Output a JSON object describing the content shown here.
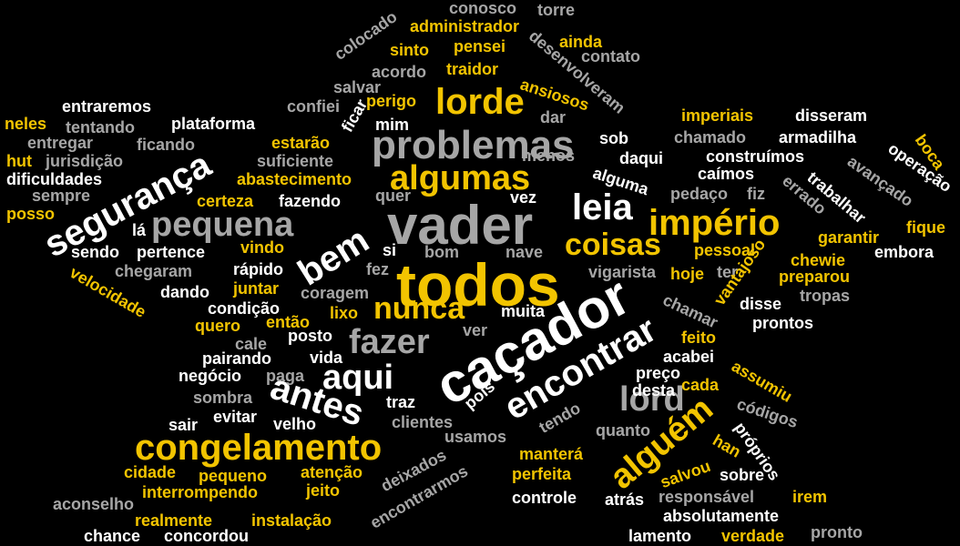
{
  "palette": {
    "background": "#000000",
    "white": "#ffffff",
    "yellow": "#f2c400",
    "grey": "#a6a6a6"
  },
  "words": [
    {
      "key": "todos",
      "text": "todos",
      "color": "yellow"
    },
    {
      "key": "vader",
      "text": "vader",
      "color": "grey"
    },
    {
      "key": "cacador",
      "text": "caçador",
      "color": "white"
    },
    {
      "key": "problemas",
      "text": "problemas",
      "color": "grey"
    },
    {
      "key": "lorde",
      "text": "lorde",
      "color": "yellow"
    },
    {
      "key": "pequena",
      "text": "pequena",
      "color": "grey"
    },
    {
      "key": "seguranca",
      "text": "segurança",
      "color": "white"
    },
    {
      "key": "algumas",
      "text": "algumas",
      "color": "yellow"
    },
    {
      "key": "imperio",
      "text": "império",
      "color": "yellow"
    },
    {
      "key": "leia",
      "text": "leia",
      "color": "white"
    },
    {
      "key": "coisas",
      "text": "coisas",
      "color": "yellow"
    },
    {
      "key": "bem",
      "text": "bem",
      "color": "white"
    },
    {
      "key": "encontrar",
      "text": "encontrar",
      "color": "white"
    },
    {
      "key": "nunca",
      "text": "nunca",
      "color": "yellow"
    },
    {
      "key": "fazer",
      "text": "fazer",
      "color": "grey"
    },
    {
      "key": "aqui",
      "text": "aqui",
      "color": "white"
    },
    {
      "key": "antes",
      "text": "antes",
      "color": "white"
    },
    {
      "key": "lord",
      "text": "lord",
      "color": "grey"
    },
    {
      "key": "alguem",
      "text": "alguém",
      "color": "yellow"
    },
    {
      "key": "congelamento",
      "text": "congelamento",
      "color": "yellow"
    },
    {
      "key": "conosco",
      "text": "conosco",
      "color": "grey"
    },
    {
      "key": "torre",
      "text": "torre",
      "color": "grey"
    },
    {
      "key": "administrador",
      "text": "administrador",
      "color": "yellow"
    },
    {
      "key": "colocado",
      "text": "colocado",
      "color": "grey"
    },
    {
      "key": "sinto",
      "text": "sinto",
      "color": "yellow"
    },
    {
      "key": "pensei",
      "text": "pensei",
      "color": "yellow"
    },
    {
      "key": "ainda",
      "text": "ainda",
      "color": "yellow"
    },
    {
      "key": "desenvolveram",
      "text": "desenvolveram",
      "color": "grey"
    },
    {
      "key": "contato",
      "text": "contato",
      "color": "grey"
    },
    {
      "key": "acordo",
      "text": "acordo",
      "color": "grey"
    },
    {
      "key": "traidor",
      "text": "traidor",
      "color": "yellow"
    },
    {
      "key": "ansiosos",
      "text": "ansiosos",
      "color": "yellow"
    },
    {
      "key": "salvar",
      "text": "salvar",
      "color": "grey"
    },
    {
      "key": "confiei",
      "text": "confiei",
      "color": "grey"
    },
    {
      "key": "perigo",
      "text": "perigo",
      "color": "yellow"
    },
    {
      "key": "entraremos",
      "text": "entraremos",
      "color": "white"
    },
    {
      "key": "neles",
      "text": "neles",
      "color": "yellow"
    },
    {
      "key": "tentando",
      "text": "tentando",
      "color": "grey"
    },
    {
      "key": "plataforma",
      "text": "plataforma",
      "color": "white"
    },
    {
      "key": "ficar",
      "text": "ficar",
      "color": "white"
    },
    {
      "key": "mim",
      "text": "mim",
      "color": "white"
    },
    {
      "key": "dar",
      "text": "dar",
      "color": "grey"
    },
    {
      "key": "imperiais",
      "text": "imperiais",
      "color": "yellow"
    },
    {
      "key": "disseram",
      "text": "disseram",
      "color": "white"
    },
    {
      "key": "entregar",
      "text": "entregar",
      "color": "grey"
    },
    {
      "key": "ficando",
      "text": "ficando",
      "color": "grey"
    },
    {
      "key": "estarao",
      "text": "estarão",
      "color": "yellow"
    },
    {
      "key": "sob",
      "text": "sob",
      "color": "white"
    },
    {
      "key": "chamado",
      "text": "chamado",
      "color": "grey"
    },
    {
      "key": "armadilha",
      "text": "armadilha",
      "color": "white"
    },
    {
      "key": "boca",
      "text": "boca",
      "color": "yellow"
    },
    {
      "key": "hut",
      "text": "hut",
      "color": "yellow"
    },
    {
      "key": "jurisdicao",
      "text": "jurisdição",
      "color": "grey"
    },
    {
      "key": "suficiente",
      "text": "suficiente",
      "color": "grey"
    },
    {
      "key": "menos",
      "text": "menos",
      "color": "grey"
    },
    {
      "key": "daqui",
      "text": "daqui",
      "color": "white"
    },
    {
      "key": "construimos",
      "text": "construímos",
      "color": "white"
    },
    {
      "key": "operacao",
      "text": "operação",
      "color": "white"
    },
    {
      "key": "dificuldades",
      "text": "dificuldades",
      "color": "white"
    },
    {
      "key": "abastecimento",
      "text": "abastecimento",
      "color": "yellow"
    },
    {
      "key": "alguma",
      "text": "alguma",
      "color": "white"
    },
    {
      "key": "caimos",
      "text": "caímos",
      "color": "white"
    },
    {
      "key": "avancado",
      "text": "avançado",
      "color": "grey"
    },
    {
      "key": "sempre",
      "text": "sempre",
      "color": "grey"
    },
    {
      "key": "certeza",
      "text": "certeza",
      "color": "yellow"
    },
    {
      "key": "fazendo",
      "text": "fazendo",
      "color": "white"
    },
    {
      "key": "quer",
      "text": "quer",
      "color": "grey"
    },
    {
      "key": "pedaco",
      "text": "pedaço",
      "color": "grey"
    },
    {
      "key": "fiz",
      "text": "fiz",
      "color": "grey"
    },
    {
      "key": "trabalhar",
      "text": "trabalhar",
      "color": "white"
    },
    {
      "key": "errado",
      "text": "errado",
      "color": "grey"
    },
    {
      "key": "posso",
      "text": "posso",
      "color": "yellow"
    },
    {
      "key": "vez",
      "text": "vez",
      "color": "white"
    },
    {
      "key": "fique",
      "text": "fique",
      "color": "yellow"
    },
    {
      "key": "la",
      "text": "lá",
      "color": "white"
    },
    {
      "key": "garantir",
      "text": "garantir",
      "color": "yellow"
    },
    {
      "key": "sendo",
      "text": "sendo",
      "color": "white"
    },
    {
      "key": "pertence",
      "text": "pertence",
      "color": "white"
    },
    {
      "key": "vindo",
      "text": "vindo",
      "color": "yellow"
    },
    {
      "key": "si",
      "text": "si",
      "color": "white"
    },
    {
      "key": "bom",
      "text": "bom",
      "color": "grey"
    },
    {
      "key": "nave",
      "text": "nave",
      "color": "grey"
    },
    {
      "key": "pessoal",
      "text": "pessoal",
      "color": "yellow"
    },
    {
      "key": "embora",
      "text": "embora",
      "color": "white"
    },
    {
      "key": "velocidade",
      "text": "velocidade",
      "color": "yellow"
    },
    {
      "key": "chegaram",
      "text": "chegaram",
      "color": "grey"
    },
    {
      "key": "rapido",
      "text": "rápido",
      "color": "white"
    },
    {
      "key": "fez",
      "text": "fez",
      "color": "grey"
    },
    {
      "key": "vigarista",
      "text": "vigarista",
      "color": "grey"
    },
    {
      "key": "hoje",
      "text": "hoje",
      "color": "yellow"
    },
    {
      "key": "ter",
      "text": "ter",
      "color": "grey"
    },
    {
      "key": "vantajoso",
      "text": "vantajoso",
      "color": "yellow"
    },
    {
      "key": "preparou",
      "text": "preparou",
      "color": "yellow"
    },
    {
      "key": "chewie",
      "text": "chewie",
      "color": "yellow"
    },
    {
      "key": "dando",
      "text": "dando",
      "color": "white"
    },
    {
      "key": "juntar",
      "text": "juntar",
      "color": "yellow"
    },
    {
      "key": "coragem",
      "text": "coragem",
      "color": "grey"
    },
    {
      "key": "tropas",
      "text": "tropas",
      "color": "grey"
    },
    {
      "key": "condicao",
      "text": "condição",
      "color": "white"
    },
    {
      "key": "lixo",
      "text": "lixo",
      "color": "yellow"
    },
    {
      "key": "muita",
      "text": "muita",
      "color": "white"
    },
    {
      "key": "disse",
      "text": "disse",
      "color": "white"
    },
    {
      "key": "quero",
      "text": "quero",
      "color": "yellow"
    },
    {
      "key": "entao",
      "text": "então",
      "color": "yellow"
    },
    {
      "key": "chamar",
      "text": "chamar",
      "color": "grey"
    },
    {
      "key": "prontos",
      "text": "prontos",
      "color": "white"
    },
    {
      "key": "cale",
      "text": "cale",
      "color": "grey"
    },
    {
      "key": "posto",
      "text": "posto",
      "color": "white"
    },
    {
      "key": "ver",
      "text": "ver",
      "color": "grey"
    },
    {
      "key": "feito",
      "text": "feito",
      "color": "yellow"
    },
    {
      "key": "pairando",
      "text": "pairando",
      "color": "white"
    },
    {
      "key": "vida",
      "text": "vida",
      "color": "white"
    },
    {
      "key": "acabei",
      "text": "acabei",
      "color": "white"
    },
    {
      "key": "negocio",
      "text": "negócio",
      "color": "white"
    },
    {
      "key": "paga",
      "text": "paga",
      "color": "grey"
    },
    {
      "key": "preco",
      "text": "preço",
      "color": "white"
    },
    {
      "key": "assumiu",
      "text": "assumiu",
      "color": "yellow"
    },
    {
      "key": "pois",
      "text": "pois",
      "color": "white"
    },
    {
      "key": "desta",
      "text": "desta",
      "color": "white"
    },
    {
      "key": "cada",
      "text": "cada",
      "color": "yellow"
    },
    {
      "key": "sombra",
      "text": "sombra",
      "color": "grey"
    },
    {
      "key": "traz",
      "text": "traz",
      "color": "white"
    },
    {
      "key": "codigos",
      "text": "códigos",
      "color": "grey"
    },
    {
      "key": "sair",
      "text": "sair",
      "color": "white"
    },
    {
      "key": "evitar",
      "text": "evitar",
      "color": "white"
    },
    {
      "key": "velho",
      "text": "velho",
      "color": "white"
    },
    {
      "key": "clientes",
      "text": "clientes",
      "color": "grey"
    },
    {
      "key": "tendo",
      "text": "tendo",
      "color": "grey"
    },
    {
      "key": "quanto",
      "text": "quanto",
      "color": "grey"
    },
    {
      "key": "proprios",
      "text": "próprios",
      "color": "white"
    },
    {
      "key": "usamos",
      "text": "usamos",
      "color": "grey"
    },
    {
      "key": "han",
      "text": "han",
      "color": "yellow"
    },
    {
      "key": "deixados",
      "text": "deixados",
      "color": "grey"
    },
    {
      "key": "mantera",
      "text": "manterá",
      "color": "yellow"
    },
    {
      "key": "cidade",
      "text": "cidade",
      "color": "yellow"
    },
    {
      "key": "pequeno",
      "text": "pequeno",
      "color": "yellow"
    },
    {
      "key": "atencao",
      "text": "atenção",
      "color": "yellow"
    },
    {
      "key": "perfeita",
      "text": "perfeita",
      "color": "yellow"
    },
    {
      "key": "salvou",
      "text": "salvou",
      "color": "yellow"
    },
    {
      "key": "sobre",
      "text": "sobre",
      "color": "white"
    },
    {
      "key": "interrompendo",
      "text": "interrompendo",
      "color": "yellow"
    },
    {
      "key": "jeito",
      "text": "jeito",
      "color": "yellow"
    },
    {
      "key": "encontrarmos",
      "text": "encontrarmos",
      "color": "grey"
    },
    {
      "key": "aconselho",
      "text": "aconselho",
      "color": "grey"
    },
    {
      "key": "controle",
      "text": "controle",
      "color": "white"
    },
    {
      "key": "atras",
      "text": "atrás",
      "color": "white"
    },
    {
      "key": "responsavel",
      "text": "responsável",
      "color": "grey"
    },
    {
      "key": "irem",
      "text": "irem",
      "color": "yellow"
    },
    {
      "key": "realmente",
      "text": "realmente",
      "color": "yellow"
    },
    {
      "key": "instalacao",
      "text": "instalação",
      "color": "yellow"
    },
    {
      "key": "absolutamente",
      "text": "absolutamente",
      "color": "white"
    },
    {
      "key": "chance",
      "text": "chance",
      "color": "white"
    },
    {
      "key": "concordou",
      "text": "concordou",
      "color": "white"
    },
    {
      "key": "lamento",
      "text": "lamento",
      "color": "white"
    },
    {
      "key": "verdade",
      "text": "verdade",
      "color": "yellow"
    },
    {
      "key": "pronto",
      "text": "pronto",
      "color": "grey"
    }
  ]
}
